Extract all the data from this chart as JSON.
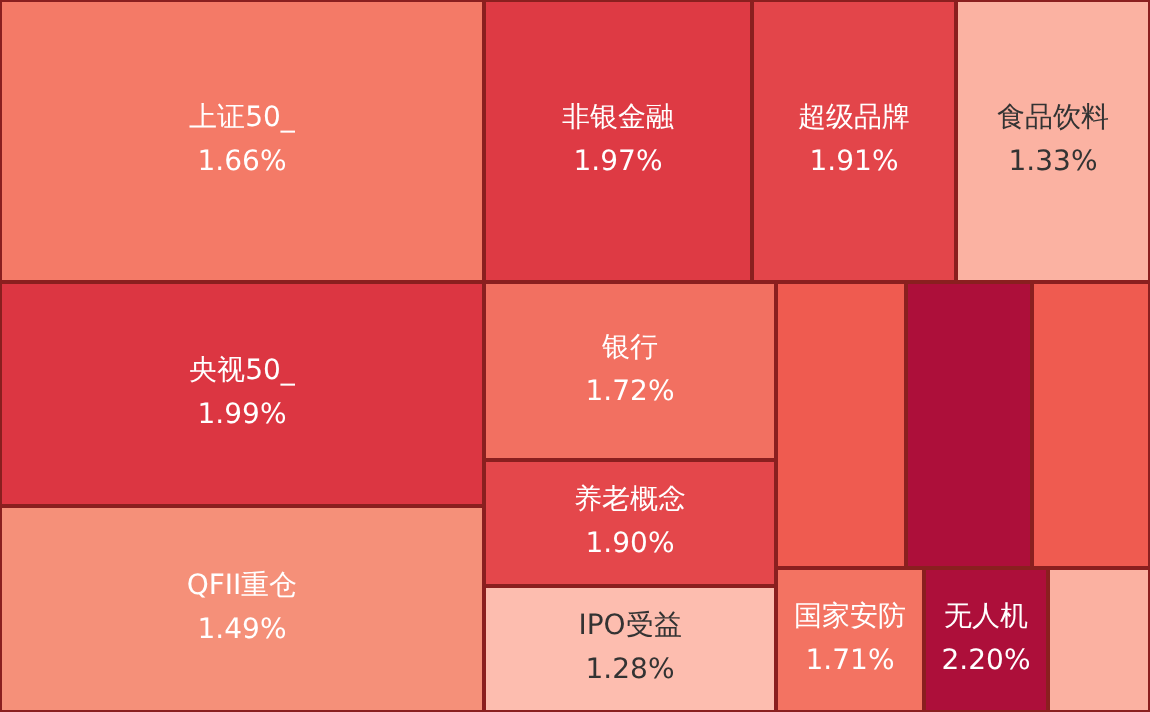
{
  "chart_data": {
    "type": "other",
    "categories": [
      "上证50_",
      "非银金融",
      "超级品牌",
      "食品饮料",
      "央视50_",
      "QFII重仓",
      "银行",
      "养老概念",
      "IPO受益",
      null,
      null,
      null,
      "国家安防",
      "无人机",
      null
    ],
    "values": [
      1.66,
      1.97,
      1.91,
      1.33,
      1.99,
      1.49,
      1.72,
      1.9,
      1.28,
      null,
      null,
      null,
      1.71,
      2.2,
      null
    ],
    "value_labels": [
      "1.66%",
      "1.97%",
      "1.91%",
      "1.33%",
      "1.99%",
      "1.49%",
      "1.72%",
      "1.90%",
      "1.28%",
      null,
      null,
      null,
      "1.71%",
      "2.20%",
      null
    ],
    "colors": [
      null,
      null,
      null,
      null,
      null,
      null,
      null,
      null,
      null,
      "#ef5b50",
      "#ad0f3a",
      "#ef5b50",
      null,
      null,
      "#fbb1a1"
    ]
  }
}
